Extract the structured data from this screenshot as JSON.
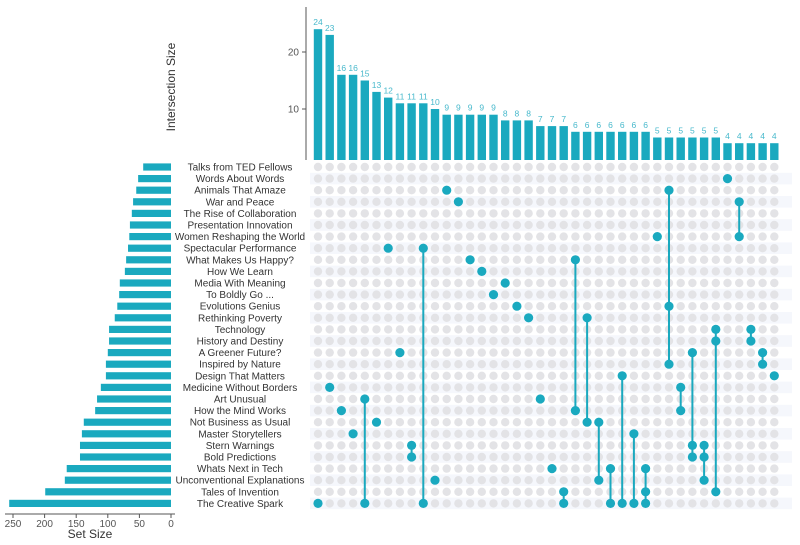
{
  "chart_data": {
    "type": "upset",
    "color": "#1aa9bf",
    "dot_empty_color": "#e3e3e6",
    "row_stripe_color": "#f5f7fc",
    "bar_label_color": "#48b9cc",
    "intersection_axis": {
      "title": "Intersection Size",
      "ticks": [
        10,
        20
      ],
      "tick_labels": [
        "10",
        "20"
      ],
      "ylim": [
        0,
        27
      ]
    },
    "set_size_axis": {
      "title": "Set Size",
      "ticks": [
        250,
        200,
        150,
        100,
        50,
        0
      ],
      "tick_labels": [
        "250",
        "200",
        "150",
        "100",
        "50",
        "0"
      ],
      "xlim": [
        0,
        270
      ]
    },
    "sets": [
      {
        "name": "Talks from TED Fellows",
        "size": 44
      },
      {
        "name": "Words About Words",
        "size": 52
      },
      {
        "name": "Animals That Amaze",
        "size": 55
      },
      {
        "name": "War and Peace",
        "size": 60
      },
      {
        "name": "The Rise of Collaboration",
        "size": 62
      },
      {
        "name": "Presentation Innovation",
        "size": 65
      },
      {
        "name": "Women Reshaping the World",
        "size": 66
      },
      {
        "name": "Spectacular Performance",
        "size": 68
      },
      {
        "name": "What Makes Us Happy?",
        "size": 71
      },
      {
        "name": "How We Learn",
        "size": 73
      },
      {
        "name": "Media With Meaning",
        "size": 81
      },
      {
        "name": "To Boldly Go ...",
        "size": 82
      },
      {
        "name": "Evolutions Genius",
        "size": 85
      },
      {
        "name": "Rethinking Poverty",
        "size": 89
      },
      {
        "name": "Technology",
        "size": 98
      },
      {
        "name": "History and Destiny",
        "size": 98
      },
      {
        "name": "A Greener Future?",
        "size": 100
      },
      {
        "name": "Inspired by Nature",
        "size": 103
      },
      {
        "name": "Design That Matters",
        "size": 103
      },
      {
        "name": "Medicine Without Borders",
        "size": 111
      },
      {
        "name": "Art Unusual",
        "size": 117
      },
      {
        "name": "How the Mind Works",
        "size": 120
      },
      {
        "name": "Not Business as Usual",
        "size": 138
      },
      {
        "name": "Master Storytellers",
        "size": 141
      },
      {
        "name": "Stern Warnings",
        "size": 144
      },
      {
        "name": "Bold Predictions",
        "size": 144
      },
      {
        "name": "Whats Next in Tech",
        "size": 165
      },
      {
        "name": "Unconventional Explanations",
        "size": 168
      },
      {
        "name": "Tales of Invention",
        "size": 199
      },
      {
        "name": "The Creative Spark",
        "size": 256
      }
    ],
    "intersections": [
      {
        "size": 24,
        "label": "24",
        "sets": [
          29
        ]
      },
      {
        "size": 23,
        "label": "23",
        "sets": [
          19
        ]
      },
      {
        "size": 16,
        "label": "16",
        "sets": [
          21
        ]
      },
      {
        "size": 16,
        "label": "16",
        "sets": [
          23
        ]
      },
      {
        "size": 15,
        "label": "15",
        "sets": [
          20,
          29
        ]
      },
      {
        "size": 13,
        "label": "13",
        "sets": [
          22
        ]
      },
      {
        "size": 12,
        "label": "12",
        "sets": [
          7
        ]
      },
      {
        "size": 11,
        "label": "11",
        "sets": [
          16
        ]
      },
      {
        "size": 11,
        "label": "11",
        "sets": [
          24,
          25
        ]
      },
      {
        "size": 11,
        "label": "11",
        "sets": [
          7,
          29
        ]
      },
      {
        "size": 10,
        "label": "10",
        "sets": [
          27
        ]
      },
      {
        "size": 9,
        "label": "9",
        "sets": [
          2
        ]
      },
      {
        "size": 9,
        "label": "9",
        "sets": [
          3
        ]
      },
      {
        "size": 9,
        "label": "9",
        "sets": [
          8
        ]
      },
      {
        "size": 9,
        "label": "9",
        "sets": [
          9
        ]
      },
      {
        "size": 9,
        "label": "9",
        "sets": [
          11
        ]
      },
      {
        "size": 8,
        "label": "8",
        "sets": [
          10
        ]
      },
      {
        "size": 8,
        "label": "8",
        "sets": [
          12
        ]
      },
      {
        "size": 8,
        "label": "8",
        "sets": [
          13
        ]
      },
      {
        "size": 7,
        "label": "7",
        "sets": [
          20
        ]
      },
      {
        "size": 7,
        "label": "7",
        "sets": [
          26
        ]
      },
      {
        "size": 7,
        "label": "7",
        "sets": [
          28,
          29
        ]
      },
      {
        "size": 6,
        "label": "6",
        "sets": [
          8,
          21
        ]
      },
      {
        "size": 6,
        "label": "6",
        "sets": [
          13,
          22
        ]
      },
      {
        "size": 6,
        "label": "6",
        "sets": [
          22,
          27
        ]
      },
      {
        "size": 6,
        "label": "6",
        "sets": [
          26,
          29
        ]
      },
      {
        "size": 6,
        "label": "6",
        "sets": [
          18,
          29
        ]
      },
      {
        "size": 6,
        "label": "6",
        "sets": [
          23,
          29
        ]
      },
      {
        "size": 6,
        "label": "6",
        "sets": [
          26,
          28,
          29
        ]
      },
      {
        "size": 5,
        "label": "5",
        "sets": [
          6
        ]
      },
      {
        "size": 5,
        "label": "5",
        "sets": [
          2,
          12,
          17
        ]
      },
      {
        "size": 5,
        "label": "5",
        "sets": [
          19,
          21
        ]
      },
      {
        "size": 5,
        "label": "5",
        "sets": [
          16,
          24,
          25
        ]
      },
      {
        "size": 5,
        "label": "5",
        "sets": [
          24,
          25,
          27
        ]
      },
      {
        "size": 5,
        "label": "5",
        "sets": [
          14,
          15,
          28
        ]
      },
      {
        "size": 4,
        "label": "4",
        "sets": [
          1
        ]
      },
      {
        "size": 4,
        "label": "4",
        "sets": [
          3,
          6
        ]
      },
      {
        "size": 4,
        "label": "4",
        "sets": [
          14,
          15
        ]
      },
      {
        "size": 4,
        "label": "4",
        "sets": [
          16,
          17
        ]
      },
      {
        "size": 4,
        "label": "4",
        "sets": [
          18
        ]
      }
    ]
  }
}
